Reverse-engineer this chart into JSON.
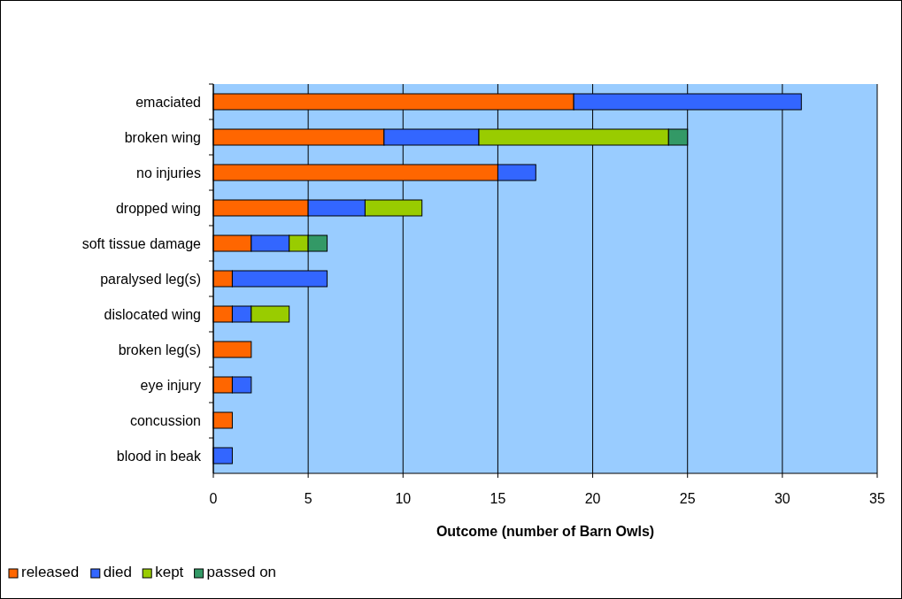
{
  "chart_data": {
    "type": "bar",
    "orientation": "horizontal",
    "stacked": true,
    "xlabel": "Outcome (number of Barn Owls)",
    "categories": [
      "emaciated",
      "broken wing",
      "no injuries",
      "dropped wing",
      "soft tissue damage",
      "paralysed leg(s)",
      "dislocated wing",
      "broken leg(s)",
      "eye injury",
      "concussion",
      "blood in beak"
    ],
    "series": [
      {
        "name": "released",
        "color": "#ff6600",
        "values": [
          19,
          9,
          15,
          5,
          2,
          1,
          1,
          2,
          1,
          1,
          null
        ]
      },
      {
        "name": "died",
        "color": "#3366ff",
        "values": [
          12,
          5,
          2,
          3,
          2,
          5,
          1,
          null,
          1,
          null,
          1
        ]
      },
      {
        "name": "kept",
        "color": "#99cc00",
        "values": [
          null,
          10,
          null,
          3,
          1,
          null,
          2,
          null,
          null,
          null,
          null
        ]
      },
      {
        "name": "passed on",
        "color": "#339966",
        "values": [
          null,
          1,
          null,
          null,
          1,
          null,
          null,
          null,
          null,
          null,
          null
        ]
      }
    ],
    "xlim": [
      0,
      35
    ],
    "xticks": [
      0,
      5,
      10,
      15,
      20,
      25,
      30,
      35
    ],
    "grid": "x",
    "legend": "bottom left"
  }
}
